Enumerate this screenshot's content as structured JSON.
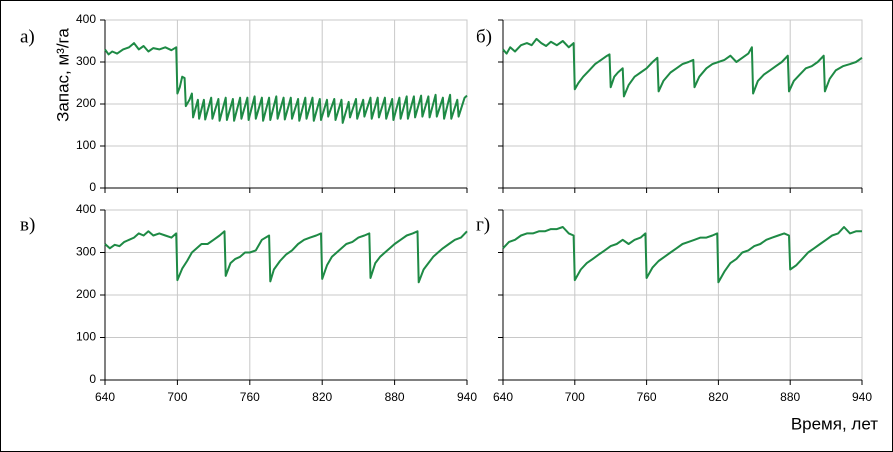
{
  "chart_data": [
    {
      "type": "line",
      "label": "а)",
      "ylabel": "Запас, м³/га",
      "x": [
        640,
        643,
        646,
        650,
        655,
        660,
        664,
        668,
        672,
        676,
        680,
        685,
        690,
        695,
        699,
        700,
        702,
        704,
        706,
        707,
        710,
        712,
        713,
        717,
        718,
        722,
        723,
        728,
        729,
        734,
        735,
        740,
        741,
        746,
        747,
        752,
        753,
        758,
        759,
        764,
        765,
        770,
        771,
        776,
        777,
        782,
        783,
        788,
        789,
        794,
        795,
        800,
        801,
        806,
        807,
        812,
        813,
        818,
        819,
        824,
        825,
        830,
        831,
        836,
        837,
        842,
        843,
        848,
        849,
        854,
        855,
        860,
        861,
        866,
        867,
        872,
        873,
        878,
        879,
        884,
        885,
        890,
        891,
        896,
        897,
        902,
        903,
        908,
        909,
        914,
        915,
        920,
        921,
        926,
        927,
        932,
        933,
        938,
        940
      ],
      "series": [
        {
          "color": "#1e8a45",
          "values": [
            330,
            318,
            325,
            320,
            330,
            335,
            345,
            330,
            338,
            325,
            333,
            330,
            335,
            328,
            335,
            225,
            240,
            265,
            262,
            195,
            210,
            225,
            168,
            210,
            165,
            210,
            163,
            215,
            165,
            212,
            160,
            215,
            162,
            212,
            160,
            215,
            165,
            215,
            162,
            218,
            165,
            215,
            160,
            215,
            162,
            218,
            165,
            215,
            163,
            215,
            165,
            212,
            160,
            215,
            165,
            215,
            160,
            212,
            162,
            210,
            170,
            212,
            162,
            210,
            155,
            205,
            168,
            212,
            165,
            210,
            170,
            215,
            165,
            215,
            168,
            215,
            165,
            212,
            162,
            215,
            165,
            218,
            165,
            218,
            168,
            220,
            170,
            218,
            168,
            222,
            170,
            215,
            165,
            222,
            165,
            210,
            170,
            215,
            220
          ]
        }
      ],
      "xlim": [
        640,
        940
      ],
      "xticks": [
        640,
        700,
        760,
        820,
        880,
        940
      ],
      "ylim": [
        0,
        400
      ],
      "yticks": [
        0,
        100,
        200,
        300,
        400
      ],
      "grid": true,
      "xtick_labels": false,
      "ytick_labels": true
    },
    {
      "type": "line",
      "label": "б)",
      "x": [
        640,
        643,
        646,
        650,
        655,
        660,
        664,
        668,
        672,
        676,
        680,
        685,
        690,
        695,
        699,
        700,
        703,
        707,
        712,
        717,
        722,
        727,
        729,
        730,
        733,
        736,
        740,
        741,
        745,
        750,
        755,
        760,
        765,
        769,
        770,
        774,
        780,
        785,
        790,
        795,
        799,
        800,
        804,
        810,
        815,
        820,
        825,
        830,
        835,
        840,
        845,
        848,
        849,
        853,
        858,
        863,
        868,
        873,
        878,
        879,
        883,
        888,
        893,
        898,
        903,
        908,
        909,
        913,
        918,
        924,
        930,
        935,
        940
      ],
      "series": [
        {
          "color": "#1e8a45",
          "values": [
            330,
            320,
            335,
            325,
            340,
            345,
            340,
            355,
            345,
            338,
            348,
            340,
            350,
            335,
            345,
            235,
            250,
            265,
            280,
            295,
            305,
            315,
            318,
            240,
            265,
            275,
            285,
            218,
            245,
            265,
            275,
            285,
            300,
            310,
            230,
            255,
            275,
            285,
            295,
            300,
            305,
            240,
            265,
            285,
            295,
            300,
            305,
            315,
            300,
            310,
            320,
            335,
            225,
            255,
            270,
            280,
            290,
            300,
            315,
            230,
            255,
            270,
            285,
            290,
            300,
            315,
            230,
            260,
            280,
            290,
            295,
            300,
            310
          ]
        }
      ],
      "xlim": [
        640,
        940
      ],
      "xticks": [
        640,
        700,
        760,
        820,
        880,
        940
      ],
      "ylim": [
        0,
        400
      ],
      "yticks": [
        0,
        100,
        200,
        300,
        400
      ],
      "grid": true,
      "xtick_labels": false,
      "ytick_labels": false
    },
    {
      "type": "line",
      "label": "в)",
      "x": [
        640,
        644,
        648,
        652,
        656,
        660,
        664,
        668,
        672,
        676,
        680,
        685,
        690,
        695,
        699,
        700,
        704,
        708,
        712,
        716,
        720,
        725,
        730,
        735,
        739,
        740,
        744,
        748,
        752,
        756,
        760,
        765,
        770,
        776,
        777,
        780,
        785,
        790,
        795,
        800,
        805,
        810,
        815,
        819,
        820,
        824,
        828,
        832,
        836,
        840,
        845,
        850,
        855,
        859,
        860,
        864,
        868,
        872,
        876,
        880,
        885,
        890,
        895,
        899,
        900,
        904,
        908,
        912,
        916,
        920,
        925,
        930,
        935,
        940
      ],
      "series": [
        {
          "color": "#1e8a45",
          "values": [
            320,
            310,
            318,
            315,
            325,
            330,
            335,
            345,
            340,
            350,
            340,
            345,
            340,
            335,
            345,
            235,
            262,
            280,
            300,
            310,
            320,
            320,
            330,
            340,
            350,
            245,
            275,
            285,
            290,
            300,
            300,
            305,
            330,
            340,
            232,
            260,
            280,
            295,
            305,
            320,
            330,
            335,
            340,
            345,
            238,
            270,
            290,
            300,
            310,
            320,
            325,
            335,
            340,
            345,
            240,
            275,
            290,
            300,
            310,
            320,
            330,
            340,
            345,
            350,
            230,
            260,
            275,
            290,
            300,
            310,
            320,
            330,
            335,
            350
          ]
        }
      ],
      "xlim": [
        640,
        940
      ],
      "xticks": [
        640,
        700,
        760,
        820,
        880,
        940
      ],
      "ylim": [
        0,
        400
      ],
      "yticks": [
        0,
        100,
        200,
        300,
        400
      ],
      "grid": true,
      "xtick_labels": true,
      "ytick_labels": true
    },
    {
      "type": "line",
      "label": "г)",
      "xlabel": "Время, лет",
      "x": [
        640,
        645,
        650,
        655,
        660,
        665,
        670,
        675,
        680,
        685,
        690,
        695,
        699,
        700,
        705,
        710,
        715,
        720,
        725,
        730,
        735,
        740,
        745,
        750,
        755,
        759,
        760,
        765,
        770,
        775,
        780,
        785,
        790,
        795,
        800,
        805,
        810,
        815,
        819,
        820,
        825,
        830,
        835,
        840,
        845,
        850,
        855,
        860,
        865,
        870,
        875,
        879,
        880,
        885,
        890,
        895,
        900,
        905,
        910,
        915,
        920,
        925,
        930,
        935,
        940
      ],
      "series": [
        {
          "color": "#1e8a45",
          "values": [
            310,
            325,
            330,
            340,
            345,
            345,
            350,
            350,
            355,
            355,
            360,
            345,
            340,
            235,
            260,
            275,
            285,
            295,
            305,
            315,
            320,
            330,
            320,
            330,
            335,
            345,
            240,
            265,
            280,
            290,
            300,
            310,
            320,
            325,
            330,
            335,
            335,
            340,
            345,
            230,
            255,
            275,
            285,
            300,
            305,
            315,
            320,
            330,
            335,
            340,
            345,
            340,
            260,
            270,
            285,
            300,
            310,
            320,
            330,
            340,
            345,
            360,
            345,
            350,
            350
          ]
        }
      ],
      "xlim": [
        640,
        940
      ],
      "xticks": [
        640,
        700,
        760,
        820,
        880,
        940
      ],
      "ylim": [
        0,
        400
      ],
      "yticks": [
        0,
        100,
        200,
        300,
        400
      ],
      "grid": true,
      "xtick_labels": true,
      "ytick_labels": false
    }
  ]
}
